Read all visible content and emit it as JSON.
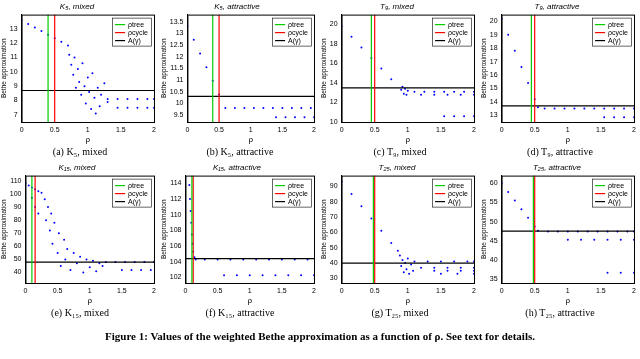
{
  "chart_data": [
    {
      "type": "scatter",
      "title": "K₅, mixed",
      "subtitle": "(a) K₅, mixed",
      "x_label": "ρ",
      "y_label": "Bethe approximation",
      "xlim": [
        0,
        2
      ],
      "xticks": [
        0,
        0.5,
        1,
        1.5,
        2
      ],
      "ylim": [
        6.5,
        14
      ],
      "yticks": [
        7,
        8,
        9,
        10,
        11,
        12,
        13
      ],
      "grid": false,
      "legend": "upper right",
      "series": [
        {
          "type": "scatter",
          "color": "#0000ff",
          "marker": "dot",
          "x": [
            0,
            0.1,
            0.2,
            0.3,
            0.4,
            0.5,
            0.6,
            0.7,
            0.72,
            0.75,
            0.78,
            0.8,
            0.82,
            0.85,
            0.87,
            0.9,
            0.92,
            0.95,
            0.97,
            1.0,
            1.02,
            1.05,
            1.07,
            1.1,
            1.12,
            1.15,
            1.18,
            1.2,
            1.25,
            1.3,
            1.3,
            1.45,
            1.6,
            1.75,
            1.9,
            2.0,
            1.45,
            1.6,
            1.75,
            1.9,
            2.0
          ],
          "values": [
            13.6,
            13.35,
            13.1,
            12.85,
            12.6,
            12.35,
            12.1,
            11.85,
            11.2,
            10.5,
            9.8,
            11.0,
            8.9,
            10.2,
            9.3,
            8.4,
            10.6,
            9.0,
            7.8,
            9.6,
            8.6,
            7.4,
            9.9,
            8.2,
            7.1,
            8.9,
            7.6,
            8.4,
            9.2,
            7.9,
            8.1,
            8.1,
            8.1,
            8.1,
            8.1,
            8.1,
            7.5,
            7.5,
            7.5,
            7.5,
            7.5
          ]
        },
        {
          "name": "ρtree",
          "type": "line",
          "color": "#00cc00",
          "x": [
            0.4,
            0.4
          ],
          "values": [
            6.5,
            14
          ]
        },
        {
          "name": "ρcycle",
          "type": "line",
          "color": "#ff0000",
          "x": [
            0.5,
            0.5
          ],
          "values": [
            6.5,
            14
          ]
        },
        {
          "name": "A(γ)",
          "type": "line",
          "color": "#000000",
          "x": [
            0,
            2
          ],
          "values": [
            8.7,
            8.7
          ]
        }
      ]
    },
    {
      "type": "scatter",
      "title": "K₅, attractive",
      "subtitle": "(b) K₅, attractive",
      "x_label": "ρ",
      "y_label": "Bethe approximation",
      "xlim": [
        0,
        2
      ],
      "xticks": [
        0,
        0.5,
        1,
        1.5,
        2
      ],
      "ylim": [
        9.2,
        13.8
      ],
      "yticks": [
        9.5,
        10,
        10.5,
        11,
        11.5,
        12,
        12.5,
        13,
        13.5
      ],
      "grid": false,
      "legend": "upper right",
      "series": [
        {
          "type": "scatter",
          "color": "#0000ff",
          "marker": "dot",
          "x": [
            0,
            0.1,
            0.2,
            0.3,
            0.4,
            0.5,
            0.6,
            0.75,
            0.9,
            1.05,
            1.2,
            1.35,
            1.5,
            1.65,
            1.8,
            1.95,
            1.4,
            1.55,
            1.7,
            1.85,
            2.0
          ],
          "values": [
            13.3,
            12.72,
            12.13,
            11.55,
            10.97,
            10.38,
            9.8,
            9.8,
            9.8,
            9.8,
            9.8,
            9.8,
            9.8,
            9.8,
            9.8,
            9.8,
            9.4,
            9.4,
            9.4,
            9.4,
            9.4
          ]
        },
        {
          "name": "ρtree",
          "type": "line",
          "color": "#00cc00",
          "x": [
            0.4,
            0.4
          ],
          "values": [
            9.2,
            13.8
          ]
        },
        {
          "name": "ρcycle",
          "type": "line",
          "color": "#ff0000",
          "x": [
            0.5,
            0.5
          ],
          "values": [
            9.2,
            13.8
          ]
        },
        {
          "name": "A(γ)",
          "type": "line",
          "color": "#000000",
          "x": [
            0,
            2
          ],
          "values": [
            10.3,
            10.3
          ]
        }
      ]
    },
    {
      "type": "scatter",
      "title": "T₉, mixed",
      "subtitle": "(c) T₉, mixed",
      "x_label": "ρ",
      "y_label": "Bethe approximation",
      "xlim": [
        0,
        2
      ],
      "xticks": [
        0,
        0.5,
        1,
        1.5,
        2
      ],
      "ylim": [
        10,
        21
      ],
      "yticks": [
        10,
        12,
        14,
        16,
        18,
        20
      ],
      "grid": false,
      "legend": "upper right",
      "series": [
        {
          "type": "scatter",
          "color": "#0000ff",
          "marker": "dot",
          "x": [
            0,
            0.15,
            0.3,
            0.45,
            0.6,
            0.75,
            0.9,
            0.92,
            0.94,
            0.96,
            0.98,
            1.0,
            1.1,
            1.25,
            1.4,
            1.55,
            1.7,
            1.85,
            2.0,
            1.2,
            1.4,
            1.6,
            1.8,
            2.0,
            1.55,
            1.7,
            1.85,
            2.0
          ],
          "values": [
            19.8,
            18.72,
            17.63,
            16.55,
            15.47,
            14.38,
            13.3,
            13.6,
            12.9,
            13.4,
            12.8,
            13.2,
            13.1,
            13.1,
            13.1,
            13.1,
            13.1,
            13.1,
            13.1,
            12.8,
            12.8,
            12.8,
            12.8,
            12.8,
            10.6,
            10.6,
            10.6,
            10.6
          ]
        },
        {
          "name": "ρtree",
          "type": "line",
          "color": "#00cc00",
          "x": [
            0.45,
            0.45
          ],
          "values": [
            10,
            21
          ]
        },
        {
          "name": "ρcycle",
          "type": "line",
          "color": "#ff0000",
          "x": [
            0.5,
            0.5
          ],
          "values": [
            10,
            21
          ]
        },
        {
          "name": "A(γ)",
          "type": "line",
          "color": "#000000",
          "x": [
            0,
            2
          ],
          "values": [
            13.5,
            13.5
          ]
        }
      ]
    },
    {
      "type": "scatter",
      "title": "T₉, attractive",
      "subtitle": "(d) T₉, attractive",
      "x_label": "ρ",
      "y_label": "Bethe approximation",
      "xlim": [
        0,
        2
      ],
      "xticks": [
        0,
        0.5,
        1,
        1.5,
        2
      ],
      "ylim": [
        12.5,
        20.5
      ],
      "yticks": [
        13,
        14,
        15,
        16,
        17,
        18,
        19,
        20
      ],
      "grid": false,
      "legend": "upper right",
      "series": [
        {
          "type": "scatter",
          "color": "#0000ff",
          "marker": "dot",
          "x": [
            0,
            0.1,
            0.2,
            0.3,
            0.4,
            0.5,
            0.55,
            0.65,
            0.8,
            0.95,
            1.1,
            1.25,
            1.4,
            1.55,
            1.7,
            1.85,
            2.0,
            1.55,
            1.7,
            1.85,
            2.0
          ],
          "values": [
            20.2,
            19.0,
            17.8,
            16.6,
            15.4,
            14.2,
            13.6,
            13.5,
            13.5,
            13.5,
            13.5,
            13.5,
            13.5,
            13.5,
            13.5,
            13.5,
            13.5,
            12.85,
            12.85,
            12.85,
            12.85
          ]
        },
        {
          "name": "ρtree",
          "type": "line",
          "color": "#00cc00",
          "x": [
            0.45,
            0.45
          ],
          "values": [
            12.5,
            20.5
          ]
        },
        {
          "name": "ρcycle",
          "type": "line",
          "color": "#ff0000",
          "x": [
            0.5,
            0.5
          ],
          "values": [
            12.5,
            20.5
          ]
        },
        {
          "name": "A(γ)",
          "type": "line",
          "color": "#000000",
          "x": [
            0,
            2
          ],
          "values": [
            13.7,
            13.7
          ]
        }
      ]
    },
    {
      "type": "scatter",
      "title": "K₁₅, mixed",
      "subtitle": "(e) K₁₅, mixed",
      "x_label": "ρ",
      "y_label": "Bethe approximation",
      "xlim": [
        0,
        2
      ],
      "xticks": [
        0,
        0.5,
        1,
        1.5,
        2
      ],
      "ylim": [
        32,
        114
      ],
      "yticks": [
        40,
        50,
        60,
        70,
        80,
        90,
        100,
        110
      ],
      "grid": false,
      "legend": "upper right",
      "series": [
        {
          "type": "scatter",
          "color": "#0000ff",
          "marker": "dot",
          "x": [
            0,
            0.05,
            0.1,
            0.15,
            0.2,
            0.25,
            0.1,
            0.15,
            0.2,
            0.3,
            0.32,
            0.35,
            0.38,
            0.4,
            0.42,
            0.45,
            0.5,
            0.52,
            0.55,
            0.6,
            0.62,
            0.65,
            0.7,
            0.75,
            0.8,
            0.85,
            0.9,
            0.95,
            1.0,
            1.05,
            1.1,
            1.15,
            1.2,
            1.25,
            1.4,
            1.55,
            1.7,
            1.85,
            2.0,
            1.5,
            1.65,
            1.8,
            1.95
          ],
          "values": [
            108,
            106.5,
            105,
            103.5,
            102,
            101,
            97,
            90,
            85,
            96,
            80,
            90,
            72,
            85,
            62,
            78,
            55,
            70,
            45,
            65,
            50,
            58,
            42,
            55,
            47,
            52,
            40,
            50,
            44,
            49,
            41,
            47,
            45,
            48,
            48,
            48,
            48,
            48,
            48,
            42,
            42,
            42,
            42
          ]
        },
        {
          "name": "ρtree",
          "type": "line",
          "color": "#00cc00",
          "x": [
            0.1,
            0.1
          ],
          "values": [
            32,
            114
          ]
        },
        {
          "name": "ρcycle",
          "type": "line",
          "color": "#ff0000",
          "x": [
            0.15,
            0.15
          ],
          "values": [
            32,
            114
          ]
        },
        {
          "name": "A(γ)",
          "type": "line",
          "color": "#000000",
          "x": [
            0,
            2
          ],
          "values": [
            48,
            48
          ]
        }
      ]
    },
    {
      "type": "scatter",
      "title": "K₁₅, attractive",
      "subtitle": "(f) K₁₅, attractive",
      "x_label": "ρ",
      "y_label": "Bethe approximation",
      "xlim": [
        0,
        2
      ],
      "xticks": [
        0,
        0.5,
        1,
        1.5,
        2
      ],
      "ylim": [
        101.3,
        115
      ],
      "yticks": [
        102,
        104,
        106,
        108,
        110,
        112,
        114
      ],
      "grid": false,
      "legend": "upper right",
      "series": [
        {
          "type": "scatter",
          "color": "#0000ff",
          "marker": "dot",
          "x": [
            0.06,
            0.07,
            0.08,
            0.09,
            0.1,
            0.11,
            0.12,
            0.14,
            0.16,
            0.3,
            0.5,
            0.7,
            0.9,
            1.1,
            1.3,
            1.5,
            1.7,
            1.9,
            0.6,
            0.8,
            1.0,
            1.2,
            1.4,
            1.6,
            1.8,
            2.0
          ],
          "values": [
            113.8,
            112,
            110.5,
            109,
            107.5,
            106.3,
            105.3,
            104.6,
            104.3,
            104.3,
            104.3,
            104.3,
            104.3,
            104.3,
            104.3,
            104.3,
            104.3,
            104.3,
            102.3,
            102.3,
            102.3,
            102.3,
            102.3,
            102.3,
            102.3,
            102.3
          ]
        },
        {
          "name": "ρtree",
          "type": "line",
          "color": "#00cc00",
          "x": [
            0.1,
            0.1
          ],
          "values": [
            101.3,
            115
          ]
        },
        {
          "name": "ρcycle",
          "type": "line",
          "color": "#ff0000",
          "x": [
            0.12,
            0.12
          ],
          "values": [
            101.3,
            115
          ]
        },
        {
          "name": "A(γ)",
          "type": "line",
          "color": "#000000",
          "x": [
            0,
            2
          ],
          "values": [
            104.4,
            104.4
          ]
        }
      ]
    },
    {
      "type": "scatter",
      "title": "T₂₅, mixed",
      "subtitle": "(g) T₂₅, mixed",
      "x_label": "ρ",
      "y_label": "Bethe approximation",
      "xlim": [
        0,
        2
      ],
      "xticks": [
        0,
        0.5,
        1,
        1.5,
        2
      ],
      "ylim": [
        27,
        97
      ],
      "yticks": [
        30,
        40,
        50,
        60,
        70,
        80,
        90
      ],
      "grid": false,
      "legend": "upper right",
      "series": [
        {
          "type": "scatter",
          "color": "#0000ff",
          "marker": "dot",
          "x": [
            0,
            0.15,
            0.3,
            0.45,
            0.6,
            0.75,
            0.85,
            0.88,
            0.9,
            0.92,
            0.94,
            0.96,
            0.98,
            1.0,
            1.02,
            1.05,
            1.08,
            1.1,
            1.3,
            1.5,
            1.7,
            1.9,
            2.0,
            1.2,
            1.4,
            1.6,
            1.8,
            2.0,
            1.4,
            1.6,
            1.8,
            2.0,
            1.5,
            1.75,
            2.0
          ],
          "values": [
            93,
            85,
            77,
            69,
            61,
            53,
            48,
            45,
            38,
            42,
            34,
            40,
            36,
            43,
            33,
            39,
            35,
            41,
            41,
            41,
            41,
            41,
            41,
            37,
            37,
            37,
            37,
            37,
            35,
            35,
            35,
            35,
            33,
            33,
            33
          ]
        },
        {
          "name": "ρtree",
          "type": "line",
          "color": "#00cc00",
          "x": [
            0.48,
            0.48
          ],
          "values": [
            27,
            97
          ]
        },
        {
          "name": "ρcycle",
          "type": "line",
          "color": "#ff0000",
          "x": [
            0.5,
            0.5
          ],
          "values": [
            27,
            97
          ]
        },
        {
          "name": "A(γ)",
          "type": "line",
          "color": "#000000",
          "x": [
            0,
            2
          ],
          "values": [
            40,
            40
          ]
        }
      ]
    },
    {
      "type": "scatter",
      "title": "T₂₅, attractive",
      "subtitle": "(h) T₂₅, attractive",
      "x_label": "ρ",
      "y_label": "Bethe approximation",
      "xlim": [
        0,
        2
      ],
      "xticks": [
        0,
        0.5,
        1,
        1.5,
        2
      ],
      "ylim": [
        34,
        62
      ],
      "yticks": [
        35,
        40,
        45,
        50,
        55,
        60
      ],
      "grid": false,
      "legend": "upper right",
      "series": [
        {
          "type": "scatter",
          "color": "#0000ff",
          "marker": "dot",
          "x": [
            0,
            0.1,
            0.2,
            0.3,
            0.4,
            0.5,
            0.55,
            0.7,
            0.85,
            1.0,
            1.15,
            1.3,
            1.45,
            1.6,
            1.75,
            1.9,
            2.0,
            1.0,
            1.2,
            1.4,
            1.6,
            1.8,
            2.0,
            1.6,
            1.8,
            2.0
          ],
          "values": [
            60,
            57.7,
            55.5,
            53.2,
            51,
            48.7,
            47.6,
            47.4,
            47.4,
            47.4,
            47.4,
            47.4,
            47.4,
            47.4,
            47.4,
            47.4,
            47.4,
            45.3,
            45.3,
            45.3,
            45.3,
            45.3,
            45.3,
            36.7,
            36.7,
            36.7
          ]
        },
        {
          "name": "ρtree",
          "type": "line",
          "color": "#00cc00",
          "x": [
            0.48,
            0.48
          ],
          "values": [
            34,
            62
          ]
        },
        {
          "name": "ρcycle",
          "type": "line",
          "color": "#ff0000",
          "x": [
            0.5,
            0.5
          ],
          "values": [
            34,
            62
          ]
        },
        {
          "name": "A(γ)",
          "type": "line",
          "color": "#000000",
          "x": [
            0,
            2
          ],
          "values": [
            47.5,
            47.5
          ]
        }
      ]
    }
  ],
  "caption": "Figure 1: Values of the weighted Bethe approximation as a function of ρ. See text for details."
}
